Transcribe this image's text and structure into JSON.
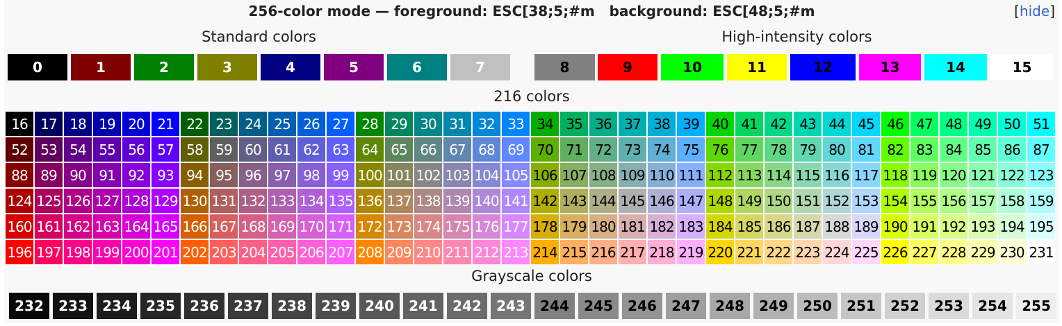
{
  "header": {
    "title": "256-color mode — foreground: ESC[38;5;#m   background: ESC[48;5;#m",
    "hide_prefix": "[",
    "hide_label": "hide",
    "hide_suffix": "]"
  },
  "captions": {
    "standard": "Standard colors",
    "high": "High-intensity colors",
    "cube": "216 colors",
    "grayscale": "Grayscale colors"
  },
  "standard_colors": [
    {
      "label": "0",
      "color": "#000000",
      "text": "#ffffff"
    },
    {
      "label": "1",
      "color": "#800000",
      "text": "#ffffff"
    },
    {
      "label": "2",
      "color": "#008000",
      "text": "#ffffff"
    },
    {
      "label": "3",
      "color": "#808000",
      "text": "#ffffff"
    },
    {
      "label": "4",
      "color": "#000080",
      "text": "#ffffff"
    },
    {
      "label": "5",
      "color": "#800080",
      "text": "#ffffff"
    },
    {
      "label": "6",
      "color": "#008080",
      "text": "#ffffff"
    },
    {
      "label": "7",
      "color": "#c0c0c0",
      "text": "#ffffff"
    }
  ],
  "high_intensity_colors": [
    {
      "label": "8",
      "color": "#808080",
      "text": "#000000"
    },
    {
      "label": "9",
      "color": "#ff0000",
      "text": "#000000"
    },
    {
      "label": "10",
      "color": "#00ff00",
      "text": "#000000"
    },
    {
      "label": "11",
      "color": "#ffff00",
      "text": "#000000"
    },
    {
      "label": "12",
      "color": "#0000ff",
      "text": "#000000"
    },
    {
      "label": "13",
      "color": "#ff00ff",
      "text": "#000000"
    },
    {
      "label": "14",
      "color": "#00ffff",
      "text": "#000000"
    },
    {
      "label": "15",
      "color": "#ffffff",
      "text": "#000000"
    }
  ],
  "cube_levels": [
    0,
    95,
    135,
    175,
    215,
    255
  ],
  "cube_range": [
    16,
    231
  ],
  "grayscale_range": [
    232,
    255
  ],
  "grayscale_levels": [
    8,
    18,
    28,
    38,
    48,
    58,
    68,
    78,
    88,
    98,
    108,
    118,
    128,
    138,
    148,
    158,
    168,
    178,
    188,
    198,
    208,
    218,
    228,
    238
  ]
}
